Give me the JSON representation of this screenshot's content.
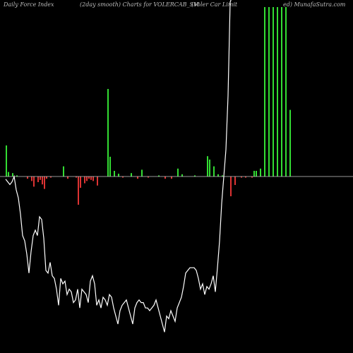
{
  "header": {
    "left": "Daily Force  Index",
    "center": "(2day smooth) Charts for VOLERCAB_SM",
    "right_a": "(Voler Car Limit",
    "right_b": "ed) MunafaSutra.com"
  },
  "colors": {
    "background": "#000000",
    "positive": "#33dd33",
    "negative": "#dd3333",
    "line": "#ffffff",
    "baseline": "#cccccc"
  },
  "chart_data": {
    "type": "bar",
    "title": "Daily Force Index (2day smooth) Charts for VOLERCAB_SM",
    "grid": false,
    "zero_level": 0,
    "bars": [
      55,
      8,
      0,
      6,
      0,
      2,
      0,
      0,
      0,
      0,
      -4,
      0,
      -8,
      -18,
      0,
      -10,
      -6,
      -14,
      -22,
      -4,
      0,
      -2,
      0,
      0,
      0,
      0,
      0,
      18,
      0,
      -4,
      0,
      0,
      0,
      -2,
      -50,
      -20,
      0,
      -12,
      -8,
      -4,
      -6,
      -8,
      0,
      -16,
      0,
      0,
      0,
      0,
      155,
      35,
      0,
      10,
      0,
      5,
      0,
      -2,
      0,
      0,
      0,
      6,
      0,
      0,
      -4,
      0,
      12,
      0,
      0,
      -2,
      0,
      0,
      0,
      0,
      2,
      0,
      0,
      -4,
      0,
      0,
      -4,
      0,
      0,
      14,
      0,
      4,
      0,
      0,
      0,
      0,
      0,
      2,
      0,
      0,
      0,
      0,
      0,
      36,
      30,
      0,
      18,
      0,
      4,
      0,
      2,
      0,
      0,
      0,
      -35,
      0,
      -15,
      0,
      0,
      -2,
      0,
      -2,
      0,
      0,
      -2,
      10,
      10,
      0,
      14,
      0,
      300,
      0,
      300,
      0,
      300,
      0,
      300,
      0,
      300,
      0,
      300,
      0,
      118
    ],
    "line": [
      -2,
      -4,
      -6,
      -4,
      0,
      -10,
      -16,
      -28,
      -44,
      -48,
      -58,
      -72,
      -56,
      -44,
      -40,
      -44,
      -30,
      -32,
      -46,
      -70,
      -72,
      -64,
      -74,
      -76,
      -84,
      -96,
      -76,
      -80,
      -78,
      -88,
      -84,
      -86,
      -94,
      -92,
      -84,
      -98,
      -84,
      -86,
      -88,
      -94,
      -78,
      -74,
      -80,
      -96,
      -92,
      -98,
      -90,
      -92,
      -96,
      -88,
      -90,
      -98,
      -104,
      -110,
      -100,
      -96,
      -94,
      -92,
      -98,
      -104,
      -110,
      -98,
      -94,
      -92,
      -94,
      -94,
      -98,
      -98,
      -100,
      -98,
      -96,
      -92,
      -98,
      -104,
      -110,
      -116,
      -104,
      -106,
      -100,
      -104,
      -108,
      -98,
      -94,
      -90,
      -82,
      -72,
      -70,
      -68,
      -68,
      -68,
      -70,
      -76,
      -84,
      -80,
      -88,
      -82,
      -84,
      -80,
      -74,
      -86,
      -68,
      -48,
      -20,
      0,
      20,
      60,
      130,
      200,
      260,
      300,
      300,
      300,
      300,
      300,
      300,
      300,
      300,
      300,
      300,
      300,
      300,
      300,
      300,
      300,
      300,
      300,
      300,
      300,
      300,
      300,
      300,
      300,
      300,
      300,
      300
    ]
  }
}
